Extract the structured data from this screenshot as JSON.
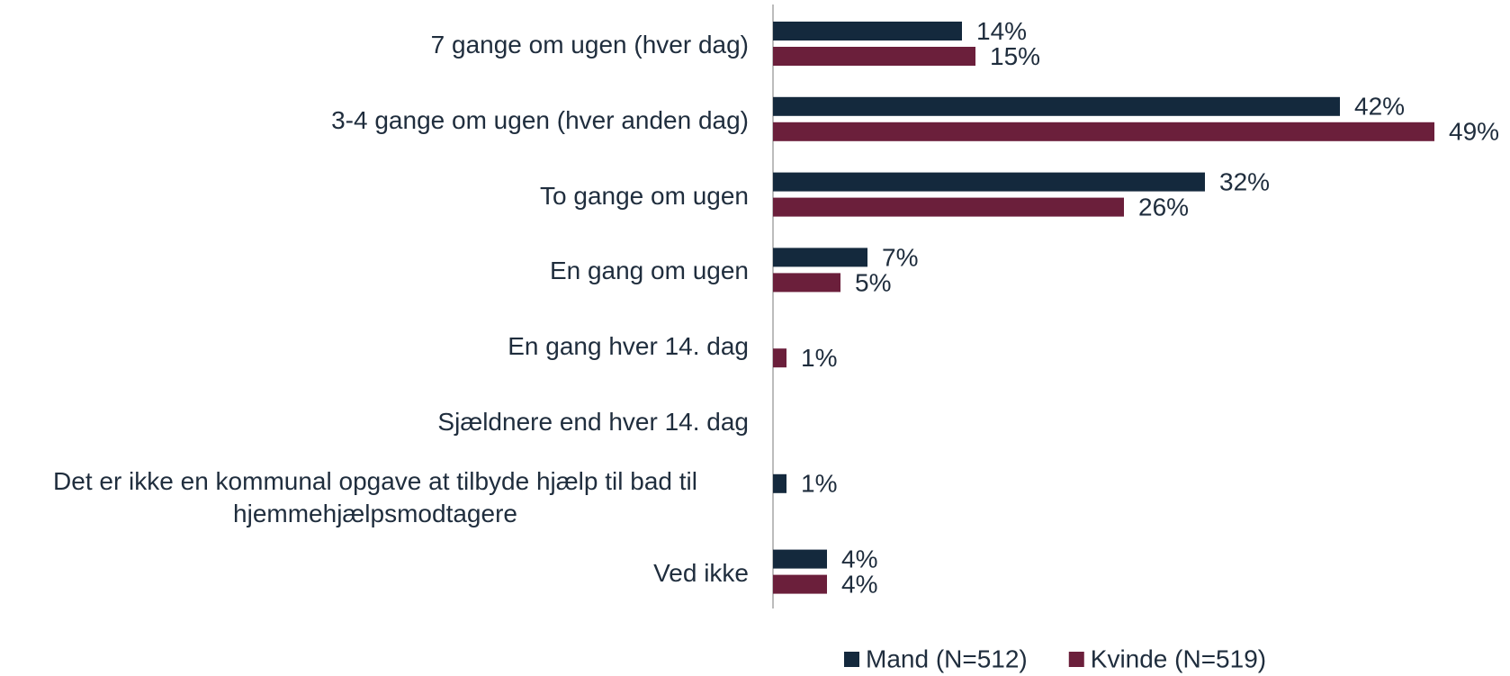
{
  "chart_data": {
    "type": "bar",
    "orientation": "horizontal",
    "categories": [
      "7 gange om ugen (hver dag)",
      "3-4 gange om ugen (hver anden dag)",
      "To gange om ugen",
      "En gang om ugen",
      "En gang hver 14. dag",
      "Sjældnere end hver 14. dag",
      "Det er ikke en kommunal opgave at tilbyde hjælp til bad til hjemmehjælpsmodtagere",
      "Ved ikke"
    ],
    "series": [
      {
        "name": "Mand (N=512)",
        "color": "#14293d",
        "values": [
          14,
          42,
          32,
          7,
          null,
          null,
          1,
          4
        ],
        "value_labels": [
          "14%",
          "42%",
          "32%",
          "7%",
          null,
          null,
          "1%",
          "4%"
        ]
      },
      {
        "name": "Kvinde (N=519)",
        "color": "#6b1f3b",
        "values": [
          15,
          49,
          26,
          5,
          1,
          null,
          null,
          4
        ],
        "value_labels": [
          "15%",
          "49%",
          "26%",
          "5%",
          "1%",
          null,
          null,
          "4%"
        ]
      }
    ],
    "xlim": [
      0,
      52
    ],
    "legend": "bottom"
  }
}
